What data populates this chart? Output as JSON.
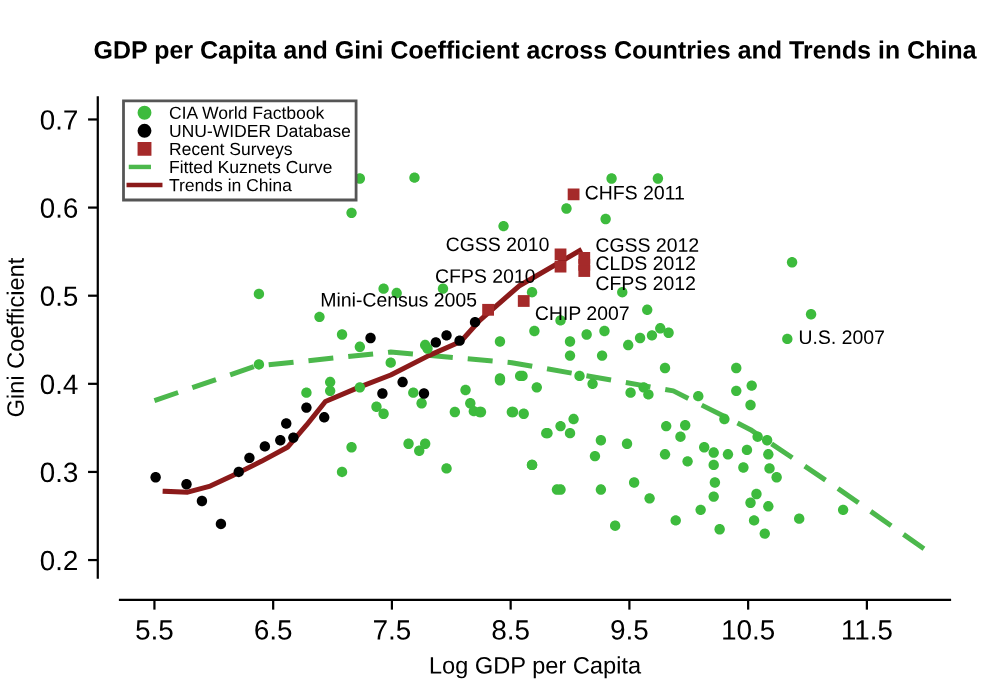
{
  "chart_data": {
    "type": "scatter",
    "title": "GDP per Capita and Gini Coefficient across Countries and Trends in China",
    "xlabel": "Log GDP per Capita",
    "ylabel": "Gini Coefficient",
    "xlim": [
      5.21,
      12.2
    ],
    "ylim": [
      0.18,
      0.725
    ],
    "xticks": [
      5.5,
      6.5,
      7.5,
      8.5,
      9.5,
      10.5,
      11.5
    ],
    "yticks": [
      0.2,
      0.3,
      0.4,
      0.5,
      0.6,
      0.7
    ],
    "grid": false,
    "legend": "top left",
    "series": [
      {
        "name": "CIA World Factbook",
        "marker": "circle",
        "color": "#3dbb3d",
        "x": [
          7.69,
          7.23,
          7.16,
          8.44,
          6.38,
          6.89,
          7.08,
          7.23,
          7.43,
          7.54,
          7.93,
          8.41,
          8.68,
          8.7,
          7.78,
          9.35,
          9.74,
          8.97,
          9.3,
          10.87,
          11.03,
          9.44,
          9.65,
          8.92,
          9.14,
          9.29,
          9.0,
          9.27,
          9.49,
          9.59,
          9.69,
          9.76,
          9.83,
          10.83,
          8.41,
          8.6,
          8.72,
          8.24,
          8.51,
          8.61,
          8.81,
          8.92,
          9.03,
          9.0,
          8.68,
          8.92,
          9.0,
          9.08,
          9.19,
          9.26,
          9.21,
          9.48,
          9.54,
          9.26,
          9.38,
          9.67,
          9.51,
          9.62,
          9.66,
          9.8,
          9.81,
          9.97,
          9.93,
          9.8,
          10.13,
          9.99,
          10.08,
          10.4,
          10.4,
          10.53,
          10.52,
          10.3,
          10.21,
          10.33,
          10.21,
          10.22,
          10.21,
          10.1,
          10.26,
          9.89,
          10.46,
          10.49,
          10.58,
          10.66,
          10.67,
          10.68,
          10.74,
          10.57,
          10.52,
          10.67,
          10.55,
          10.64,
          10.93,
          11.3,
          6.38,
          6.78,
          6.98,
          6.98,
          7.23,
          7.37,
          7.43,
          7.49,
          7.68,
          7.75,
          7.16,
          7.08,
          7.64,
          7.73,
          7.78,
          7.96,
          8.03,
          8.12,
          8.16,
          8.19,
          8.25,
          8.41,
          8.58,
          8.52,
          8.68,
          8.89,
          8.8,
          7.8
        ],
        "values": [
          0.634,
          0.633,
          0.594,
          0.579,
          0.502,
          0.476,
          0.456,
          0.442,
          0.508,
          0.503,
          0.508,
          0.448,
          0.504,
          0.46,
          0.444,
          0.633,
          0.633,
          0.599,
          0.587,
          0.538,
          0.479,
          0.504,
          0.484,
          0.472,
          0.456,
          0.46,
          0.448,
          0.432,
          0.444,
          0.452,
          0.455,
          0.463,
          0.458,
          0.451,
          0.404,
          0.409,
          0.396,
          0.368,
          0.368,
          0.366,
          0.344,
          0.352,
          0.36,
          0.344,
          0.308,
          0.28,
          0.432,
          0.409,
          0.4,
          0.336,
          0.318,
          0.332,
          0.288,
          0.28,
          0.239,
          0.27,
          0.39,
          0.396,
          0.388,
          0.418,
          0.352,
          0.353,
          0.34,
          0.32,
          0.328,
          0.312,
          0.386,
          0.418,
          0.392,
          0.398,
          0.376,
          0.36,
          0.322,
          0.32,
          0.308,
          0.288,
          0.272,
          0.257,
          0.235,
          0.245,
          0.305,
          0.325,
          0.34,
          0.336,
          0.32,
          0.304,
          0.294,
          0.275,
          0.265,
          0.261,
          0.245,
          0.23,
          0.247,
          0.257,
          0.422,
          0.39,
          0.402,
          0.392,
          0.396,
          0.374,
          0.366,
          0.424,
          0.39,
          0.378,
          0.328,
          0.3,
          0.332,
          0.324,
          0.332,
          0.304,
          0.368,
          0.393,
          0.378,
          0.369,
          0.368,
          0.406,
          0.409,
          0.368,
          0.308,
          0.28,
          0.344,
          0.44
        ]
      },
      {
        "name": "UNU-WIDER Database",
        "marker": "circle",
        "color": "#000000",
        "x": [
          5.51,
          5.77,
          5.9,
          6.06,
          6.21,
          6.3,
          6.43,
          6.56,
          6.61,
          6.67,
          6.78,
          6.93,
          7.32,
          7.42,
          7.59,
          7.77,
          7.87,
          7.96,
          8.07,
          8.2
        ],
        "values": [
          0.294,
          0.286,
          0.267,
          0.241,
          0.3,
          0.316,
          0.329,
          0.336,
          0.355,
          0.339,
          0.373,
          0.362,
          0.452,
          0.389,
          0.402,
          0.389,
          0.447,
          0.455,
          0.449,
          0.47
        ]
      },
      {
        "name": "Recent Surveys",
        "marker": "square",
        "color": "#a52a2a",
        "x": [
          9.03,
          8.92,
          8.92,
          9.12,
          9.12,
          9.12,
          8.61,
          8.31
        ],
        "values": [
          0.615,
          0.547,
          0.533,
          0.543,
          0.535,
          0.528,
          0.494,
          0.484
        ]
      },
      {
        "name": "Fitted Kuznets Curve",
        "type": "line",
        "line_style": "dashed",
        "color": "#4cb84c",
        "x": [
          5.5,
          6.35,
          7.49,
          8.51,
          9.87,
          10.52,
          11.27,
          12.0
        ],
        "values": [
          0.381,
          0.42,
          0.436,
          0.424,
          0.392,
          0.348,
          0.28,
          0.211
        ]
      },
      {
        "name": "Trends in China",
        "type": "line",
        "line_style": "solid",
        "color": "#8b1a1a",
        "x": [
          5.59,
          5.78,
          5.97,
          6.16,
          6.4,
          6.62,
          6.78,
          6.94,
          7.22,
          7.49,
          7.81,
          8.08,
          8.24,
          8.57,
          9.08
        ],
        "values": [
          0.278,
          0.277,
          0.284,
          0.296,
          0.312,
          0.328,
          0.353,
          0.38,
          0.396,
          0.41,
          0.432,
          0.448,
          0.472,
          0.511,
          0.551
        ]
      }
    ],
    "annotations": [
      {
        "text": "CHFS 2011",
        "x": 9.03,
        "y": 0.615
      },
      {
        "text": "CGSS 2010",
        "x": 8.92,
        "y": 0.547
      },
      {
        "text": "CFPS 2010",
        "x": 8.92,
        "y": 0.533
      },
      {
        "text": "CGSS 2012",
        "x": 9.12,
        "y": 0.543
      },
      {
        "text": "CLDS 2012",
        "x": 9.12,
        "y": 0.535
      },
      {
        "text": "CFPS 2012",
        "x": 9.12,
        "y": 0.528
      },
      {
        "text": "CHIP 2007",
        "x": 8.61,
        "y": 0.494
      },
      {
        "text": "Mini-Census 2005",
        "x": 8.31,
        "y": 0.484
      },
      {
        "text": "U.S. 2007",
        "x": 10.83,
        "y": 0.451
      }
    ]
  }
}
